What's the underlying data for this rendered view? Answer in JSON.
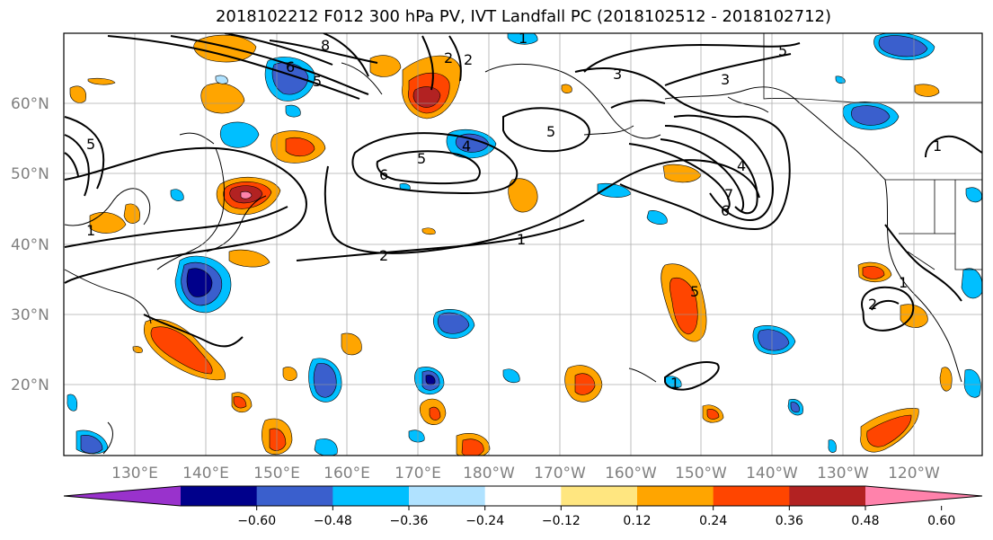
{
  "title": "2018102212 F012 300 hPa PV, IVT Landfall PC (2018102512 - 2018102712)",
  "lat_labels": [
    "60°N",
    "50°N",
    "40°N",
    "30°N",
    "20°N"
  ],
  "lon_labels": [
    "130°E",
    "140°E",
    "150°E",
    "160°E",
    "170°E",
    "180°W",
    "170°W",
    "160°W",
    "150°W",
    "140°W",
    "130°W",
    "120°W"
  ],
  "colorbar": {
    "ticks": [
      "−0.60",
      "−0.48",
      "−0.36",
      "−0.24",
      "−0.12",
      "0.12",
      "0.24",
      "0.36",
      "0.48",
      "0.60"
    ],
    "colors": [
      "#9932cc",
      "#00008b",
      "#3a5fcd",
      "#00bfff",
      "#b0e2ff",
      "#ffffff",
      "#ffe680",
      "#ffa500",
      "#ff4500",
      "#b22222",
      "#ff82ab"
    ]
  },
  "contour_labels": [
    "8",
    "6",
    "5",
    "2",
    "2",
    "1",
    "3",
    "5",
    "5",
    "4",
    "5",
    "6",
    "2",
    "1",
    "3",
    "7",
    "6",
    "4",
    "5",
    "1",
    "1",
    "2",
    "1",
    "5",
    "1"
  ]
}
